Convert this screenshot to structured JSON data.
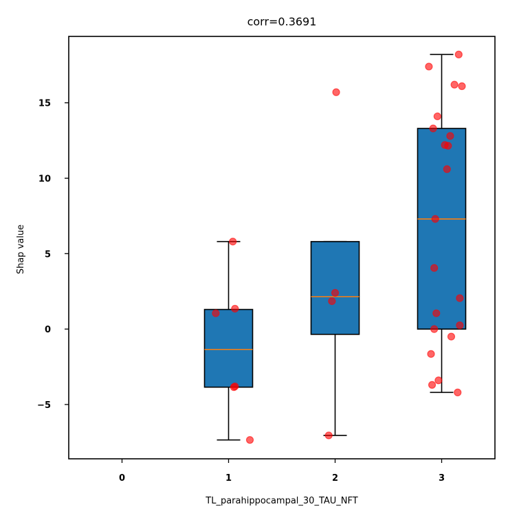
{
  "chart_data": {
    "type": "box",
    "title": "corr=0.3691",
    "xlabel": "TL_parahippocampal_30_TAU_NFT",
    "ylabel": "Shap value",
    "categories": [
      "0",
      "1",
      "2",
      "3"
    ],
    "xlim": [
      -0.5,
      3.5
    ],
    "ylim": [
      -8.6,
      19.4
    ],
    "yticks": [
      -5,
      0,
      5,
      10,
      15
    ],
    "box_color": "#1f77b4",
    "median_color": "#ff7f0e",
    "point_color": "#ff0000",
    "boxes": [
      {
        "category": "1",
        "position": 1,
        "whisker_low": -7.35,
        "q1": -3.85,
        "median": -1.35,
        "q3": 1.3,
        "whisker_high": 5.8
      },
      {
        "category": "2",
        "position": 2,
        "whisker_low": -7.05,
        "q1": -0.35,
        "median": 2.15,
        "q3": 5.8,
        "whisker_high": 5.8
      },
      {
        "category": "3",
        "position": 3,
        "whisker_low": -4.2,
        "q1": 0.0,
        "median": 7.3,
        "q3": 13.3,
        "whisker_high": 18.2
      }
    ],
    "points": [
      {
        "x": 1.04,
        "y": 5.8
      },
      {
        "x": 0.88,
        "y": 1.05
      },
      {
        "x": 1.06,
        "y": 1.35
      },
      {
        "x": 1.05,
        "y": -3.85
      },
      {
        "x": 1.06,
        "y": -3.8
      },
      {
        "x": 1.2,
        "y": -7.35
      },
      {
        "x": 2.01,
        "y": 15.7
      },
      {
        "x": 2.0,
        "y": 2.4
      },
      {
        "x": 1.97,
        "y": 1.85
      },
      {
        "x": 1.94,
        "y": -7.05
      },
      {
        "x": 3.16,
        "y": 18.2
      },
      {
        "x": 2.88,
        "y": 17.4
      },
      {
        "x": 3.12,
        "y": 16.2
      },
      {
        "x": 3.19,
        "y": 16.1
      },
      {
        "x": 2.96,
        "y": 14.1
      },
      {
        "x": 2.92,
        "y": 13.3
      },
      {
        "x": 3.08,
        "y": 12.8
      },
      {
        "x": 3.03,
        "y": 12.2
      },
      {
        "x": 3.06,
        "y": 12.15
      },
      {
        "x": 3.05,
        "y": 10.6
      },
      {
        "x": 2.94,
        "y": 7.3
      },
      {
        "x": 2.93,
        "y": 4.05
      },
      {
        "x": 3.17,
        "y": 2.05
      },
      {
        "x": 2.95,
        "y": 1.05
      },
      {
        "x": 3.17,
        "y": 0.25
      },
      {
        "x": 2.93,
        "y": 0.0
      },
      {
        "x": 3.09,
        "y": -0.5
      },
      {
        "x": 2.9,
        "y": -1.65
      },
      {
        "x": 2.97,
        "y": -3.4
      },
      {
        "x": 2.91,
        "y": -3.7
      },
      {
        "x": 3.15,
        "y": -4.2
      }
    ]
  }
}
